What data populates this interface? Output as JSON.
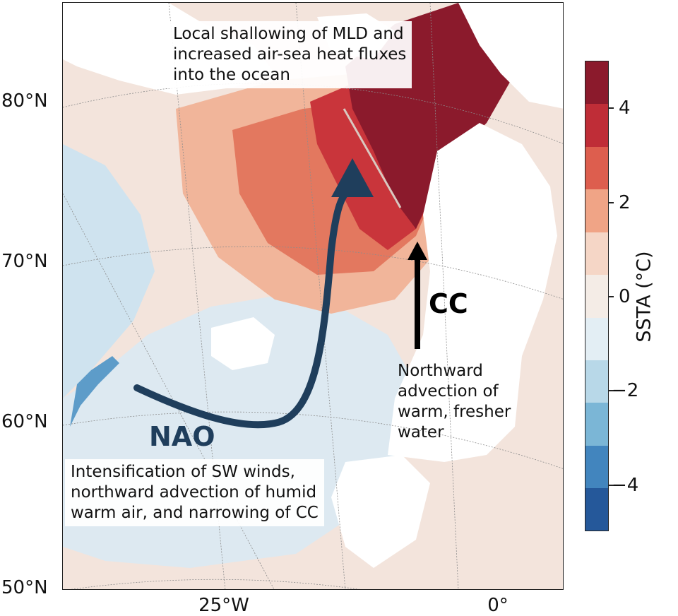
{
  "map": {
    "latitude_labels": [
      "80°N",
      "70°N",
      "60°N",
      "50°N"
    ],
    "longitude_labels": [
      "25°W",
      "0°"
    ],
    "annotations": {
      "top": [
        "Local shallowing of MLD and",
        "increased air-sea heat fluxes",
        "into the ocean"
      ],
      "right": [
        "Northward",
        "advection of",
        "warm, fresher",
        "water"
      ],
      "bottom": [
        "Intensification of SW winds,",
        "northward advection of humid",
        "warm air, and narrowing of CC"
      ]
    },
    "arrow_labels": {
      "nao": "NAO",
      "cc": "CC"
    },
    "colors": {
      "nao_arrow": "#1f3e5c",
      "cc_arrow": "#000000",
      "land_mask": "#ffffff",
      "graticule": "#8c8c8c"
    }
  },
  "colorbar": {
    "title": "SSTA (°C)",
    "ticks": [
      "4",
      "2",
      "0",
      "−2",
      "−4"
    ],
    "tick_values": [
      4,
      2,
      0,
      -2,
      -4
    ],
    "range": [
      -5,
      5
    ],
    "colors_top_to_bottom": [
      "#8b1a2c",
      "#bf2d37",
      "#dd5e4e",
      "#f0a486",
      "#f5d6c6",
      "#f4ece6",
      "#e3eef4",
      "#b8d8e8",
      "#7bb6d6",
      "#4285be",
      "#25589a"
    ]
  }
}
